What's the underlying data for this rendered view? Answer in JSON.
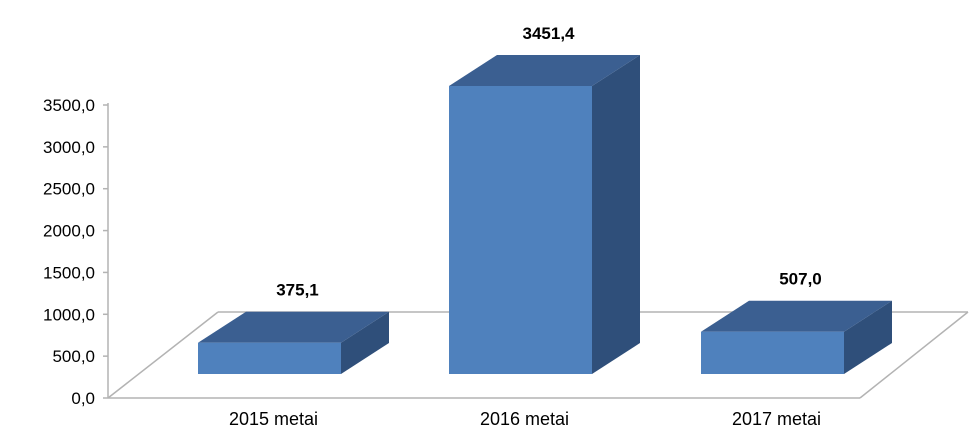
{
  "chart_data": {
    "type": "bar",
    "categories": [
      "2015 metai",
      "2016 metai",
      "2017 metai"
    ],
    "values": [
      375.1,
      3451.4,
      507.0
    ],
    "data_labels": [
      "375,1",
      "3451,4",
      "507,0"
    ],
    "ylim": [
      0,
      3500
    ],
    "yticks": [
      {
        "value": 0,
        "label": "0,0"
      },
      {
        "value": 500,
        "label": "500,0"
      },
      {
        "value": 1000,
        "label": "1000,0"
      },
      {
        "value": 1500,
        "label": "1500,0"
      },
      {
        "value": 2000,
        "label": "2000,0"
      },
      {
        "value": 2500,
        "label": "2500,0"
      },
      {
        "value": 3000,
        "label": "3000,0"
      },
      {
        "value": 3500,
        "label": "3500,0"
      }
    ],
    "title": "",
    "xlabel": "",
    "ylabel": "",
    "grid": false,
    "legend": "none",
    "style": "3d-column",
    "colors": {
      "front": "#4f81bd",
      "side": "#2f4f7a",
      "top": "#3b5f91",
      "axis": "#b3b3b3"
    }
  }
}
